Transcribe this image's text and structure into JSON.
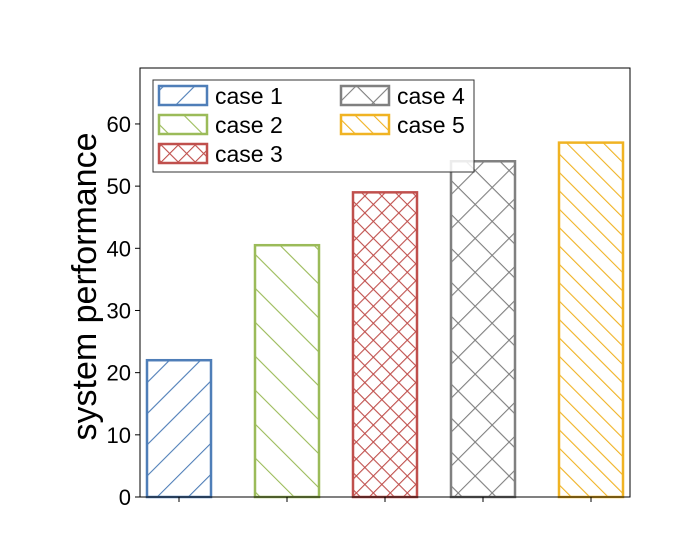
{
  "chart_data": {
    "type": "bar",
    "title": "",
    "xlabel": "",
    "ylabel": "system performance",
    "ylim": [
      0,
      69
    ],
    "yticks": [
      0,
      10,
      20,
      30,
      40,
      50,
      60
    ],
    "grid": false,
    "legend_position": "top-left",
    "legend_columns": 2,
    "series": [
      {
        "name": "case 1",
        "value": 22,
        "color": "#4f7eb8",
        "hatch": "diagonal-forward"
      },
      {
        "name": "case 2",
        "value": 40.5,
        "color": "#9bbb59",
        "hatch": "diagonal-back"
      },
      {
        "name": "case 3",
        "value": 49,
        "color": "#c0504d",
        "hatch": "cross"
      },
      {
        "name": "case 4",
        "value": 54,
        "color": "#808080",
        "hatch": "cross-wide"
      },
      {
        "name": "case 5",
        "value": 57,
        "color": "#f0b323",
        "hatch": "diagonal-back-dense"
      }
    ]
  }
}
